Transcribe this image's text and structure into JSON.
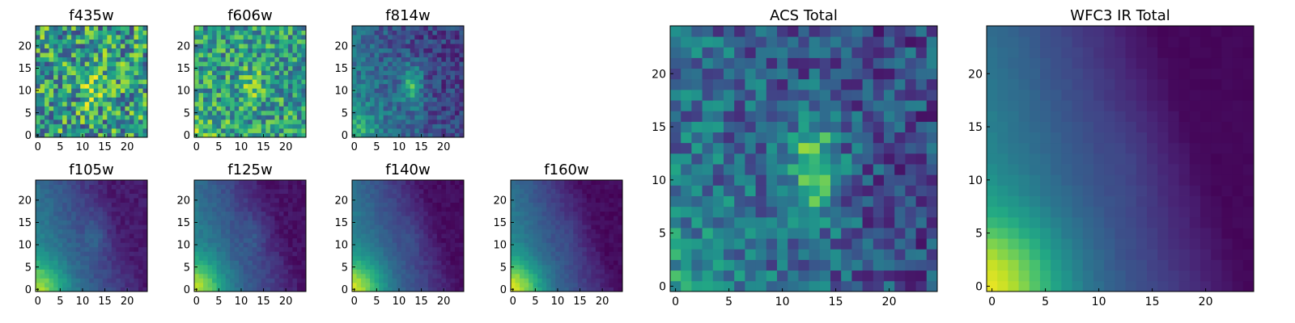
{
  "chart_data": [
    {
      "type": "heatmap",
      "title": "f435w",
      "xticks": [
        0,
        5,
        10,
        15,
        20
      ],
      "yticks": [
        0,
        5,
        10,
        15,
        20
      ],
      "xlim": [
        0,
        24
      ],
      "ylim": [
        0,
        24
      ],
      "colormap": "viridis",
      "pattern": "noisy",
      "peak": [
        12,
        11
      ],
      "bright": 0.62,
      "spread": 0.5,
      "grad": 0.0,
      "noise": 0.35,
      "seed": 11
    },
    {
      "type": "heatmap",
      "title": "f606w",
      "xticks": [
        0,
        5,
        10,
        15,
        20
      ],
      "yticks": [
        0,
        5,
        10,
        15,
        20
      ],
      "xlim": [
        0,
        24
      ],
      "ylim": [
        0,
        24
      ],
      "colormap": "viridis",
      "pattern": "noisy",
      "peak": [
        12,
        11
      ],
      "bright": 0.45,
      "spread": 0.55,
      "grad": 0.18,
      "noise": 0.28,
      "seed": 23
    },
    {
      "type": "heatmap",
      "title": "f814w",
      "xticks": [
        0,
        5,
        10,
        15,
        20
      ],
      "yticks": [
        0,
        5,
        10,
        15,
        20
      ],
      "xlim": [
        0,
        24
      ],
      "ylim": [
        0,
        24
      ],
      "colormap": "viridis",
      "pattern": "source",
      "peak": [
        13,
        11
      ],
      "bright": 0.4,
      "spread": 0.5,
      "grad": 0.45,
      "noise": 0.14,
      "seed": 37
    },
    {
      "type": "heatmap",
      "title": "f105w",
      "xticks": [
        0,
        5,
        10,
        15,
        20
      ],
      "yticks": [
        0,
        5,
        10,
        15,
        20
      ],
      "xlim": [
        0,
        24
      ],
      "ylim": [
        0,
        24
      ],
      "colormap": "viridis",
      "pattern": "smooth",
      "peak": [
        13,
        12
      ],
      "bright": 0.12,
      "spread": 0.4,
      "grad": 0.8,
      "noise": 0.04,
      "seed": 41
    },
    {
      "type": "heatmap",
      "title": "f125w",
      "xticks": [
        0,
        5,
        10,
        15,
        20
      ],
      "yticks": [
        0,
        5,
        10,
        15,
        20
      ],
      "xlim": [
        0,
        24
      ],
      "ylim": [
        0,
        24
      ],
      "colormap": "viridis",
      "pattern": "smooth",
      "peak": [
        13,
        12
      ],
      "bright": 0.08,
      "spread": 0.4,
      "grad": 0.85,
      "noise": 0.04,
      "seed": 53
    },
    {
      "type": "heatmap",
      "title": "f140w",
      "xticks": [
        0,
        5,
        10,
        15,
        20
      ],
      "yticks": [
        0,
        5,
        10,
        15,
        20
      ],
      "xlim": [
        0,
        24
      ],
      "ylim": [
        0,
        24
      ],
      "colormap": "viridis",
      "pattern": "smooth",
      "peak": [
        13,
        12
      ],
      "bright": 0.05,
      "spread": 0.4,
      "grad": 0.9,
      "noise": 0.03,
      "seed": 67
    },
    {
      "type": "heatmap",
      "title": "f160w",
      "xticks": [
        0,
        5,
        10,
        15,
        20
      ],
      "yticks": [
        0,
        5,
        10,
        15,
        20
      ],
      "xlim": [
        0,
        24
      ],
      "ylim": [
        0,
        24
      ],
      "colormap": "viridis",
      "pattern": "smooth",
      "peak": [
        13,
        12
      ],
      "bright": 0.04,
      "spread": 0.4,
      "grad": 0.92,
      "noise": 0.03,
      "seed": 71
    },
    {
      "type": "heatmap",
      "title": "ACS Total",
      "xticks": [
        0,
        5,
        10,
        15,
        20
      ],
      "yticks": [
        0,
        5,
        10,
        15,
        20
      ],
      "xlim": [
        0,
        24
      ],
      "ylim": [
        0,
        24
      ],
      "colormap": "viridis",
      "pattern": "source",
      "peak": [
        13,
        11
      ],
      "bright": 0.55,
      "spread": 0.5,
      "grad": 0.3,
      "noise": 0.2,
      "seed": 83
    },
    {
      "type": "heatmap",
      "title": "WFC3 IR Total",
      "xticks": [
        0,
        5,
        10,
        15,
        20
      ],
      "yticks": [
        0,
        5,
        10,
        15,
        20
      ],
      "xlim": [
        0,
        24
      ],
      "ylim": [
        0,
        24
      ],
      "colormap": "viridis",
      "pattern": "smooth",
      "peak": [
        13,
        12
      ],
      "bright": 0.03,
      "spread": 0.4,
      "grad": 0.95,
      "noise": 0.01,
      "seed": 97
    }
  ]
}
